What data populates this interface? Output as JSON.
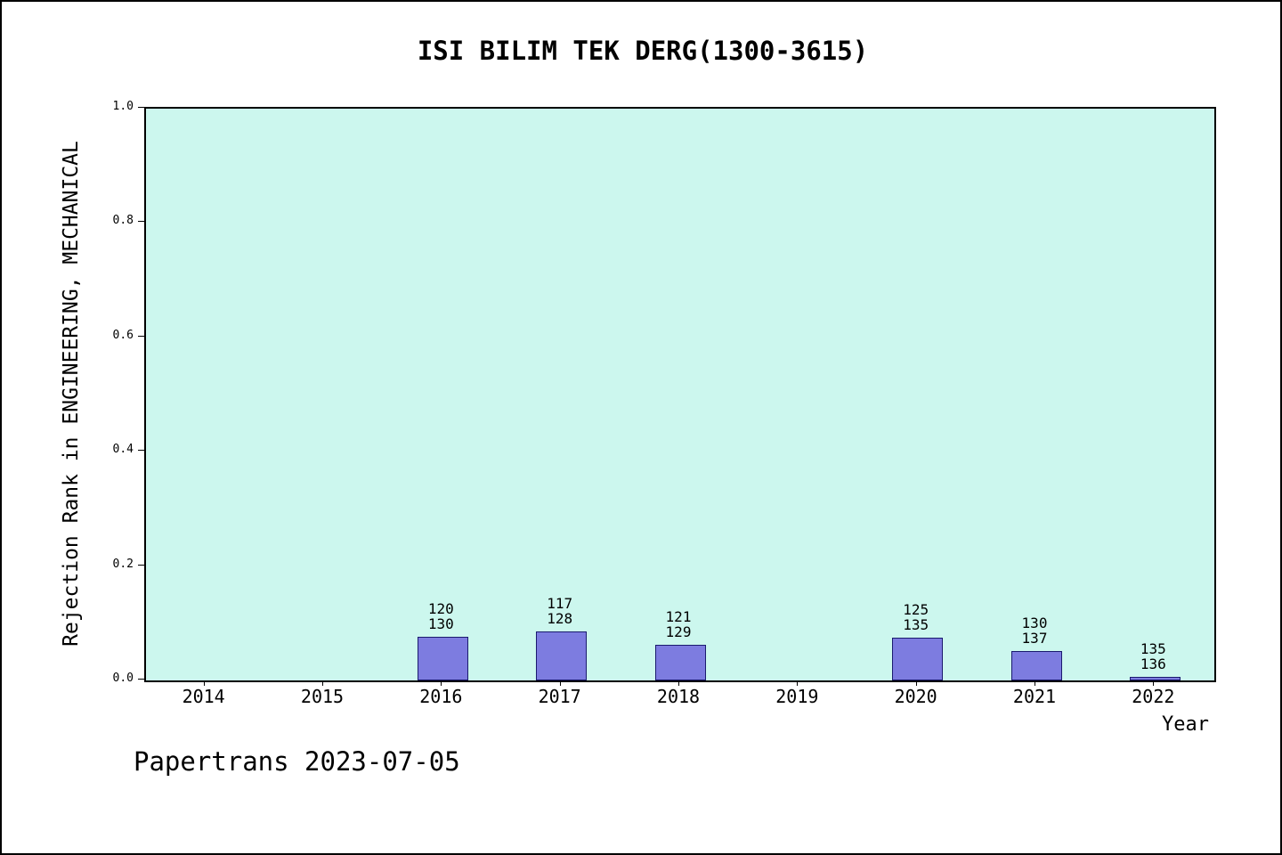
{
  "title": "ISI BILIM TEK DERG(1300-3615)",
  "footer": "Papertrans 2023-07-05",
  "colors": {
    "plot_bg": "#ccf7ee",
    "bar_fill": "#7d7ce0",
    "bar_border": "#1a1a6e"
  },
  "chart_data": {
    "type": "bar",
    "title": "ISI BILIM TEK DERG(1300-3615)",
    "xlabel": "Year",
    "ylabel": "Rejection Rank in ENGINEERING, MECHANICAL",
    "ylim": [
      0.0,
      1.0
    ],
    "yticks": [
      "0.0",
      "0.2",
      "0.4",
      "0.6",
      "0.8",
      "1.0"
    ],
    "grid": false,
    "legend_position": "none",
    "categories": [
      "2014",
      "2015",
      "2016",
      "2017",
      "2018",
      "2019",
      "2020",
      "2021",
      "2022"
    ],
    "values": [
      null,
      null,
      0.077,
      0.086,
      0.062,
      null,
      0.074,
      0.051,
      0.007
    ],
    "annotations_numerator": [
      null,
      null,
      "120",
      "117",
      "121",
      null,
      "125",
      "130",
      "135"
    ],
    "annotations_denominator": [
      null,
      null,
      "130",
      "128",
      "129",
      null,
      "135",
      "137",
      "136"
    ]
  }
}
